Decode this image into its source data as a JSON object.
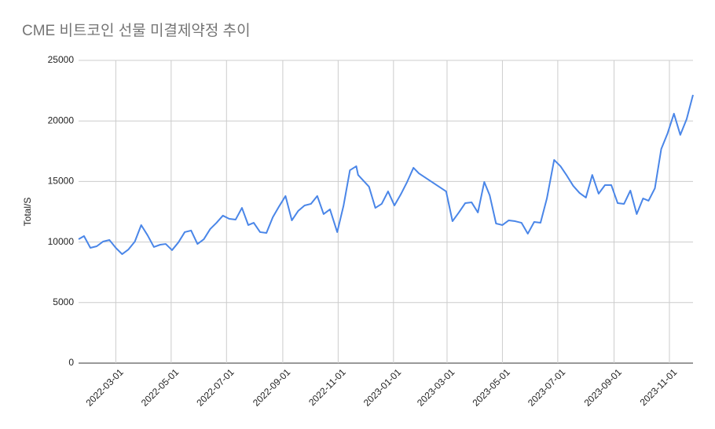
{
  "chart_data": {
    "type": "line",
    "title": "CME 비트코인 선물 미결제약정 추이",
    "y_label": "Total/S",
    "x": [
      "2022-01-19",
      "2022-01-25",
      "2022-02-01",
      "2022-02-08",
      "2022-02-15",
      "2022-02-22",
      "2022-03-01",
      "2022-03-08",
      "2022-03-15",
      "2022-03-22",
      "2022-03-29",
      "2022-04-05",
      "2022-04-12",
      "2022-04-19",
      "2022-04-25",
      "2022-05-02",
      "2022-05-09",
      "2022-05-16",
      "2022-05-23",
      "2022-05-30",
      "2022-06-06",
      "2022-06-13",
      "2022-06-20",
      "2022-06-27",
      "2022-07-04",
      "2022-07-11",
      "2022-07-18",
      "2022-07-25",
      "2022-07-31",
      "2022-08-07",
      "2022-08-14",
      "2022-08-21",
      "2022-08-28",
      "2022-09-04",
      "2022-09-11",
      "2022-09-18",
      "2022-09-25",
      "2022-10-02",
      "2022-10-09",
      "2022-10-16",
      "2022-10-23",
      "2022-10-31",
      "2022-11-07",
      "2022-11-14",
      "2022-11-21",
      "2022-11-23",
      "2022-12-05",
      "2022-12-12",
      "2022-12-19",
      "2022-12-26",
      "2023-01-02",
      "2023-01-09",
      "2023-01-16",
      "2023-01-23",
      "2023-01-29",
      "2023-02-28",
      "2023-03-07",
      "2023-03-14",
      "2023-03-21",
      "2023-03-28",
      "2023-04-04",
      "2023-04-11",
      "2023-04-17",
      "2023-04-24",
      "2023-05-01",
      "2023-05-08",
      "2023-05-15",
      "2023-05-22",
      "2023-05-29",
      "2023-06-05",
      "2023-06-12",
      "2023-06-19",
      "2023-06-27",
      "2023-07-04",
      "2023-07-11",
      "2023-07-18",
      "2023-07-25",
      "2023-08-01",
      "2023-08-08",
      "2023-08-15",
      "2023-08-22",
      "2023-08-29",
      "2023-09-05",
      "2023-09-12",
      "2023-09-19",
      "2023-09-26",
      "2023-10-03",
      "2023-10-09",
      "2023-10-16",
      "2023-10-23",
      "2023-10-30",
      "2023-11-06",
      "2023-11-13",
      "2023-11-20",
      "2023-11-27"
    ],
    "series": [
      {
        "name": "Total/S",
        "color": "#4a86e8",
        "values": [
          10230,
          10490,
          9520,
          9650,
          10040,
          10170,
          9520,
          9000,
          9390,
          10040,
          11400,
          10560,
          9590,
          9780,
          9840,
          9330,
          9970,
          10820,
          10950,
          9840,
          10230,
          11070,
          11590,
          12180,
          11920,
          11850,
          12820,
          11400,
          11590,
          10820,
          10750,
          12050,
          12950,
          13800,
          11790,
          12570,
          13020,
          13150,
          13800,
          12310,
          12700,
          10820,
          13020,
          15930,
          16260,
          15540,
          14570,
          12820,
          13150,
          14180,
          13020,
          13930,
          14960,
          16130,
          15670,
          14180,
          11720,
          12440,
          13210,
          13280,
          12440,
          14960,
          13860,
          11530,
          11400,
          11790,
          11720,
          11590,
          10690,
          11660,
          11590,
          13600,
          16780,
          16260,
          15480,
          14640,
          14050,
          13670,
          15540,
          13990,
          14700,
          14700,
          13210,
          13150,
          14250,
          12310,
          13600,
          13410,
          14440,
          17680,
          18980,
          20600,
          18850,
          20150,
          22150
        ]
      }
    ],
    "xlim": [
      "2022-01-19",
      "2023-11-27"
    ],
    "xticks": [
      "2022-03-01",
      "2022-05-01",
      "2022-07-01",
      "2022-09-01",
      "2022-11-01",
      "2023-01-01",
      "2023-03-01",
      "2023-05-01",
      "2023-07-01",
      "2023-09-01",
      "2023-11-01"
    ],
    "ylim": [
      0,
      25000
    ],
    "yticks": [
      0,
      5000,
      10000,
      15000,
      20000,
      25000
    ],
    "grid": true
  }
}
